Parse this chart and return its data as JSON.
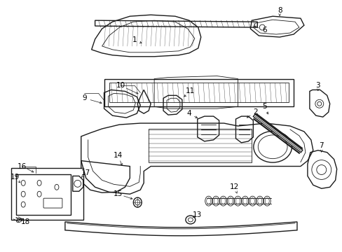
{
  "background_color": "#ffffff",
  "figsize": [
    4.89,
    3.6
  ],
  "dpi": 100,
  "line_color": "#1a1a1a",
  "text_color": "#000000",
  "label_fontsize": 7.5
}
